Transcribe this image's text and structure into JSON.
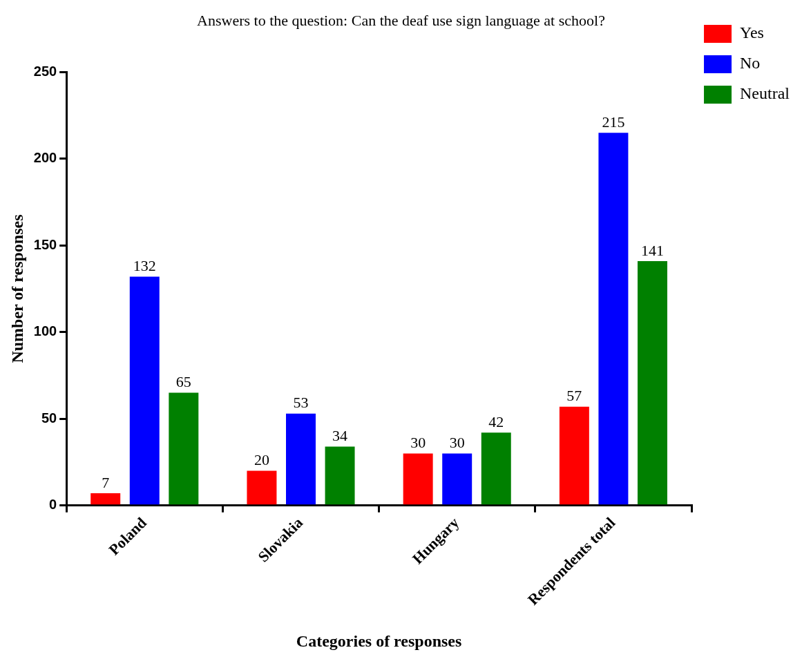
{
  "chart_data": {
    "type": "bar",
    "title": "Answers to the question: Can the deaf use sign language at school?",
    "xlabel": "Categories of responses",
    "ylabel": "Number of responses",
    "categories": [
      "Poland",
      "Slovakia",
      "Hungary",
      "Respondents total"
    ],
    "series": [
      {
        "name": "Yes",
        "color": "#ff0000",
        "values": [
          7,
          20,
          30,
          57
        ]
      },
      {
        "name": "No",
        "color": "#0000ff",
        "values": [
          132,
          53,
          30,
          215
        ]
      },
      {
        "name": "Neutral",
        "color": "#008000",
        "values": [
          65,
          34,
          42,
          141
        ]
      }
    ],
    "ylim": [
      0,
      250
    ],
    "yticks": [
      0,
      50,
      100,
      150,
      200,
      250
    ],
    "grid": false,
    "legend": "top right",
    "data_labels": true
  }
}
